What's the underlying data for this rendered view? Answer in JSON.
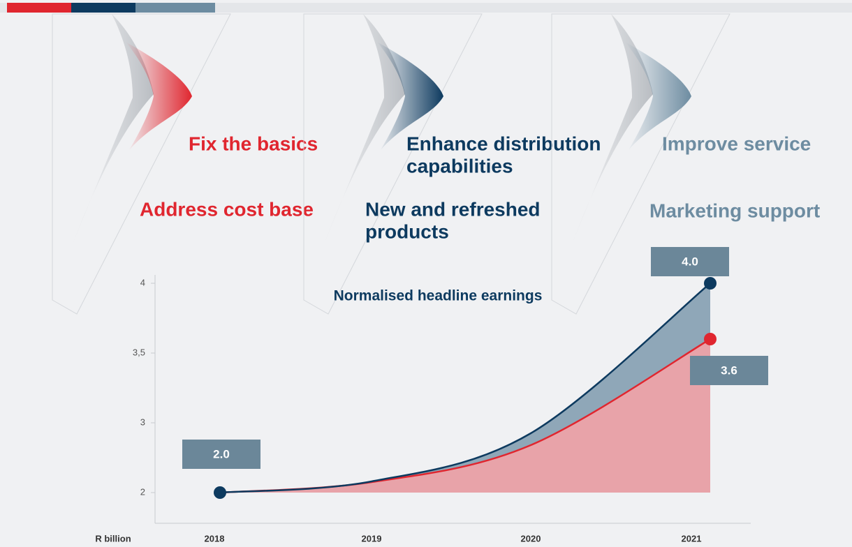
{
  "pillars": [
    {
      "color": "#e0262f",
      "items": [
        [
          "Fix the basics"
        ],
        [
          "Address cost base"
        ]
      ]
    },
    {
      "color": "#0d3a5f",
      "items": [
        [
          "Enhance distribution",
          "capabilities"
        ],
        [
          "New and refreshed",
          "products"
        ]
      ]
    },
    {
      "color": "#6d8ca1",
      "items": [
        [
          "Improve service"
        ],
        [
          "Marketing support"
        ]
      ]
    }
  ],
  "chart_data": {
    "type": "line",
    "title": "Normalised headline earnings",
    "ylabel": "R billion",
    "categories": [
      "2018",
      "2019",
      "2020",
      "2021"
    ],
    "series": [
      {
        "color": "#0d3a5f",
        "fill": "#8fa7b8",
        "values": [
          2.0,
          2.16,
          2.85,
          4.0
        ],
        "value_labels": [
          "2.0",
          null,
          null,
          "4.0"
        ]
      },
      {
        "color": "#e0262f",
        "fill": "#e8a3a9",
        "values": [
          2.0,
          2.15,
          2.68,
          3.6
        ],
        "value_labels": [
          null,
          null,
          null,
          "3.6"
        ]
      }
    ],
    "ylim": [
      1.56,
      4.06
    ],
    "yticks": [
      2,
      3,
      {
        "value": 3.5,
        "label": "3,5"
      },
      4
    ],
    "grid": false,
    "label_color": "#6b8799"
  }
}
